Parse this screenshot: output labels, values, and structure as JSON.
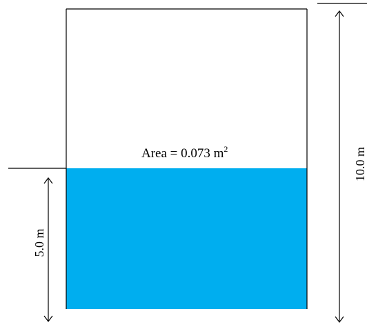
{
  "tank": {
    "area_label": "Area = 0.073 m",
    "area_superscript": "2",
    "water_depth_label": "5.0 m",
    "tank_height_label": "10.0 m",
    "water_fill_fraction": 0.5
  },
  "colors": {
    "water": "#00aeef",
    "outline": "#000000",
    "background": "#ffffff"
  }
}
